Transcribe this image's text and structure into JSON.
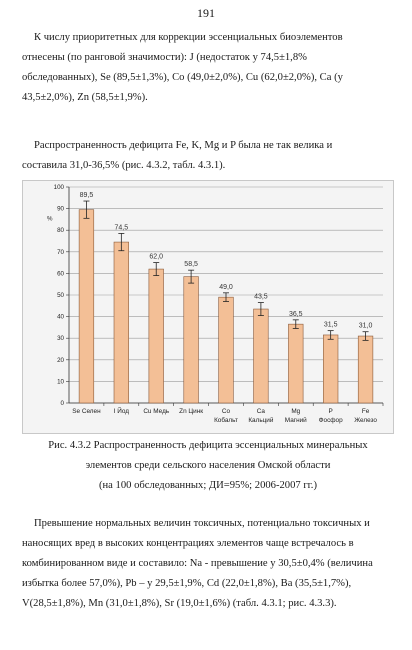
{
  "page_number": "191",
  "paragraph1": {
    "lines": [
      "К числу приоритетных для коррекции эссенциальных биоэлементов",
      "отнесены (по ранговой значимости): J (недостаток у 74,5±1,8%",
      "обследованных), Se (89,5±1,3%), Co (49,0±2,0%), Cu (62,0±2,0%), Ca (у",
      "43,5±2,0%), Zn (58,5±1,9%)."
    ]
  },
  "paragraph2": {
    "lines": [
      "Распространенность дефицита Fe, K, Mg и P была не так велика и",
      "составила 31,0-36,5% (рис. 4.3.2, табл. 4.3.1)."
    ]
  },
  "chart_data": {
    "type": "bar",
    "ylabel": "%",
    "ylim": [
      0,
      100
    ],
    "yticks": [
      "0",
      "10",
      "20",
      "30",
      "40",
      "50",
      "60",
      "70",
      "80",
      "90",
      "100"
    ],
    "grid": true,
    "categories": [
      [
        "Se",
        "Селен"
      ],
      [
        "I",
        "Йод"
      ],
      [
        "Cu",
        "Медь"
      ],
      [
        "Zn",
        "Цинк"
      ],
      [
        "Co",
        "Кобальт"
      ],
      [
        "Ca",
        "Кальций"
      ],
      [
        "Mg",
        "Магний"
      ],
      [
        "P",
        "Фосфор"
      ],
      [
        "Fe",
        "Железо"
      ]
    ],
    "values": [
      89.5,
      74.5,
      62.0,
      58.5,
      49.0,
      43.5,
      36.5,
      31.5,
      31.0
    ],
    "value_labels": [
      "89,5",
      "74,5",
      "62,0",
      "58,5",
      "49,0",
      "43,5",
      "36,5",
      "31,5",
      "31,0"
    ],
    "errors": [
      4,
      4,
      3,
      3,
      2,
      3,
      2,
      2,
      2
    ],
    "colors": {
      "bar_fill": "#f3bf96",
      "bar_stroke": "#8a5a3a",
      "background": "#f4f4f4",
      "grid": "#9a9a9a"
    }
  },
  "caption": {
    "line1": "Рис. 4.3.2 Распространенность дефицита эссенциальных минеральных",
    "line2": "элементов среди сельского населения Омской области",
    "line3": "(на 100 обследованных; ДИ=95%; 2006-2007 гг.)"
  },
  "paragraph3": {
    "lines": [
      "Превышение нормальных величин токсичных, потенциально токсичных и",
      "наносящих вред в высоких концентрациях элементов чаще встречалось в",
      "комбинированном виде и составило: Na - превышение у 30,5±0,4% (величина",
      "избытка более 57,0%), Pb – у 29,5±1,9%, Cd (22,0±1,8%), Ba (35,5±1,7%),",
      "V(28,5±1,8%), Mn (31,0±1,8%), Sr (19,0±1,6%) (табл. 4.3.1; рис. 4.3.3)."
    ]
  }
}
